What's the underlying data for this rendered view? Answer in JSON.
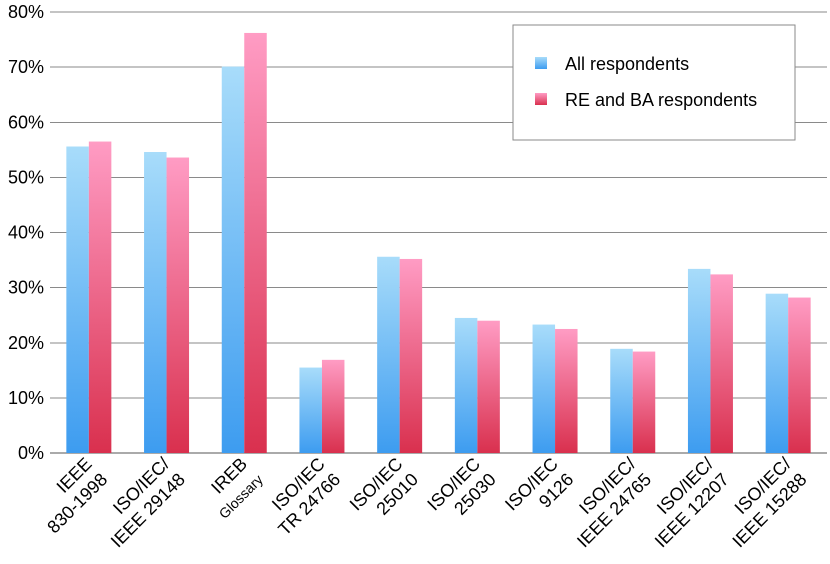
{
  "chart_data": {
    "type": "bar",
    "title": "",
    "xlabel": "",
    "ylabel": "",
    "ylim": [
      0,
      80
    ],
    "yticks": [
      "0%",
      "10%",
      "20%",
      "30%",
      "40%",
      "50%",
      "60%",
      "70%",
      "80%"
    ],
    "grid": true,
    "legend_position": "top-right",
    "categories": [
      "IEEE 830-1998",
      "ISO/IEC/ IEEE 29148",
      "IREB Glossary",
      "ISO/IEC TR 24766",
      "ISO/IEC 25010",
      "ISO/IEC 25030",
      "ISO/IEC 9126",
      "ISO/IEC/ IEEE 24765",
      "ISO/IEC/ IEEE 12207",
      "ISO/IEC/ IEEE 15288"
    ],
    "category_labels": [
      {
        "line1": "IEEE",
        "line2": "830-1998",
        "small2": false
      },
      {
        "line1": "ISO/IEC/",
        "line2": "IEEE 29148",
        "small2": false
      },
      {
        "line1": "IREB",
        "line2": "Glossary",
        "small2": true
      },
      {
        "line1": "ISO/IEC",
        "line2": "TR 24766",
        "small2": false
      },
      {
        "line1": "ISO/IEC",
        "line2": "25010",
        "small2": false
      },
      {
        "line1": "ISO/IEC",
        "line2": "25030",
        "small2": false
      },
      {
        "line1": "ISO/IEC",
        "line2": "9126",
        "small2": false
      },
      {
        "line1": "ISO/IEC/",
        "line2": "IEEE 24765",
        "small2": false
      },
      {
        "line1": "ISO/IEC/",
        "line2": "IEEE 12207",
        "small2": false
      },
      {
        "line1": "ISO/IEC/",
        "line2": "IEEE 15288",
        "small2": false
      }
    ],
    "series": [
      {
        "name": "All respondents",
        "values": [
          55.6,
          54.6,
          70.1,
          15.5,
          35.6,
          24.5,
          23.3,
          18.9,
          33.4,
          28.9
        ]
      },
      {
        "name": "RE and BA respondents",
        "values": [
          56.5,
          53.6,
          76.2,
          16.9,
          35.2,
          24.0,
          22.5,
          18.4,
          32.4,
          28.2
        ]
      }
    ],
    "colors": {
      "series0_top": "#a8dcfa",
      "series0_bottom": "#3d9cf0",
      "series1_top": "#ff9cc4",
      "series1_bottom": "#d9304e",
      "grid": "#8a8a8a",
      "axis": "#555555",
      "legend_border": "#8a8a8a"
    }
  }
}
